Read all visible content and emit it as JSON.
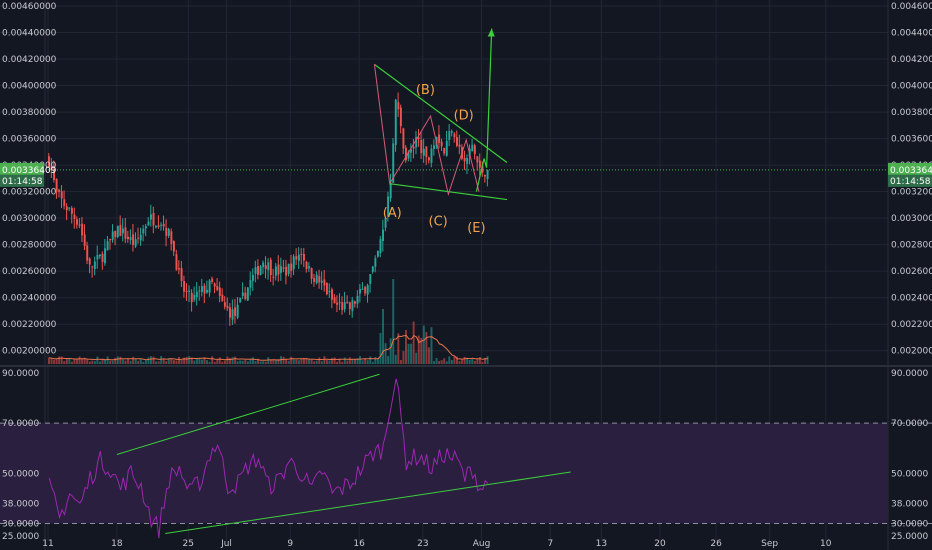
{
  "colors": {
    "background": "#131722",
    "grid": "#222632",
    "up": "#26a69a",
    "down": "#ef5350",
    "trendline": "#3bcf3b",
    "wave": "#d65a78",
    "rsi": "#9c27b0",
    "rsi_band": "#2a1f3f",
    "price_line": "#4caf50",
    "volume_ma": "#e8734a",
    "label": "#f0a34c"
  },
  "price_badge": {
    "value": "0.00336409",
    "countdown": "01:14:58"
  },
  "chart_data": [
    {
      "type": "candlestick",
      "ylim": [
        0.0019,
        0.0046
      ],
      "ticks": [
        "0.00200000",
        "0.00220000",
        "0.00240000",
        "0.00260000",
        "0.00280000",
        "0.00300000",
        "0.00320000",
        "0.00340000",
        "0.00360000",
        "0.00380000",
        "0.00400000",
        "0.00420000",
        "0.00440000",
        "0.00460000"
      ],
      "x_tick_labels": [
        "11",
        "18",
        "25",
        "Jul",
        "9",
        "16",
        "23",
        "Aug",
        "7",
        "13",
        "20",
        "26",
        "Sep",
        "10"
      ],
      "close_path": [
        [
          0,
          0.00345
        ],
        [
          3,
          0.00318
        ],
        [
          7,
          0.00308
        ],
        [
          12,
          0.00296
        ],
        [
          16,
          0.00262
        ],
        [
          21,
          0.00272
        ],
        [
          27,
          0.00292
        ],
        [
          34,
          0.0028
        ],
        [
          39,
          0.003
        ],
        [
          44,
          0.00298
        ],
        [
          48,
          0.00284
        ],
        [
          52,
          0.00248
        ],
        [
          56,
          0.00238
        ],
        [
          60,
          0.00245
        ],
        [
          64,
          0.0025
        ],
        [
          69,
          0.00232
        ],
        [
          73,
          0.00227
        ],
        [
          79,
          0.00252
        ],
        [
          84,
          0.00268
        ],
        [
          88,
          0.0026
        ],
        [
          93,
          0.0026
        ],
        [
          99,
          0.00275
        ],
        [
          102,
          0.0026
        ],
        [
          108,
          0.00248
        ],
        [
          112,
          0.00235
        ],
        [
          118,
          0.00232
        ],
        [
          124,
          0.00248
        ],
        [
          128,
          0.00265
        ],
        [
          131,
          0.0029
        ],
        [
          134,
          0.0033
        ],
        [
          136,
          0.0039
        ],
        [
          140,
          0.00345
        ],
        [
          145,
          0.0036
        ],
        [
          148,
          0.00342
        ],
        [
          152,
          0.00365
        ],
        [
          155,
          0.0035
        ],
        [
          158,
          0.0037
        ],
        [
          161,
          0.00352
        ],
        [
          163,
          0.0034
        ],
        [
          166,
          0.00355
        ],
        [
          169,
          0.00335
        ],
        [
          172,
          0.00336
        ]
      ],
      "waves": [
        {
          "label": "(A)",
          "price": 0.00313
        },
        {
          "label": "(B)",
          "price": 0.00386
        },
        {
          "label": "(C)",
          "price": 0.00308
        },
        {
          "label": "(D)",
          "price": 0.00367
        },
        {
          "label": "(E)",
          "price": 0.00303
        }
      ],
      "last_price": 0.00336409
    },
    {
      "type": "line",
      "ylim": [
        23,
        92
      ],
      "ticks": [
        {
          "value": 90,
          "label": "90.0000"
        },
        {
          "value": 70,
          "label": "70.0000"
        },
        {
          "value": 50,
          "label": "50.0000"
        },
        {
          "value": 38,
          "label": "38.0000"
        },
        {
          "value": 30,
          "label": "30.0000"
        },
        {
          "value": 25,
          "label": "25.0000"
        }
      ],
      "band": [
        30,
        70
      ],
      "rsi_path": [
        [
          0,
          45
        ],
        [
          4,
          32
        ],
        [
          8,
          42
        ],
        [
          12,
          37
        ],
        [
          16,
          48
        ],
        [
          20,
          55
        ],
        [
          24,
          52
        ],
        [
          28,
          44
        ],
        [
          32,
          50
        ],
        [
          36,
          45
        ],
        [
          40,
          32
        ],
        [
          43,
          28
        ],
        [
          47,
          48
        ],
        [
          51,
          52
        ],
        [
          55,
          42
        ],
        [
          60,
          48
        ],
        [
          63,
          58
        ],
        [
          66,
          62
        ],
        [
          70,
          45
        ],
        [
          74,
          46
        ],
        [
          78,
          53
        ],
        [
          82,
          56
        ],
        [
          86,
          45
        ],
        [
          90,
          47
        ],
        [
          94,
          55
        ],
        [
          99,
          50
        ],
        [
          103,
          43
        ],
        [
          107,
          51
        ],
        [
          111,
          42
        ],
        [
          115,
          44
        ],
        [
          119,
          47
        ],
        [
          123,
          53
        ],
        [
          127,
          58
        ],
        [
          131,
          60
        ],
        [
          134,
          80
        ],
        [
          136,
          88
        ],
        [
          140,
          55
        ],
        [
          145,
          57
        ],
        [
          150,
          52
        ],
        [
          155,
          58
        ],
        [
          160,
          55
        ],
        [
          163,
          48
        ],
        [
          166,
          52
        ],
        [
          169,
          44
        ],
        [
          172,
          46
        ]
      ]
    }
  ]
}
